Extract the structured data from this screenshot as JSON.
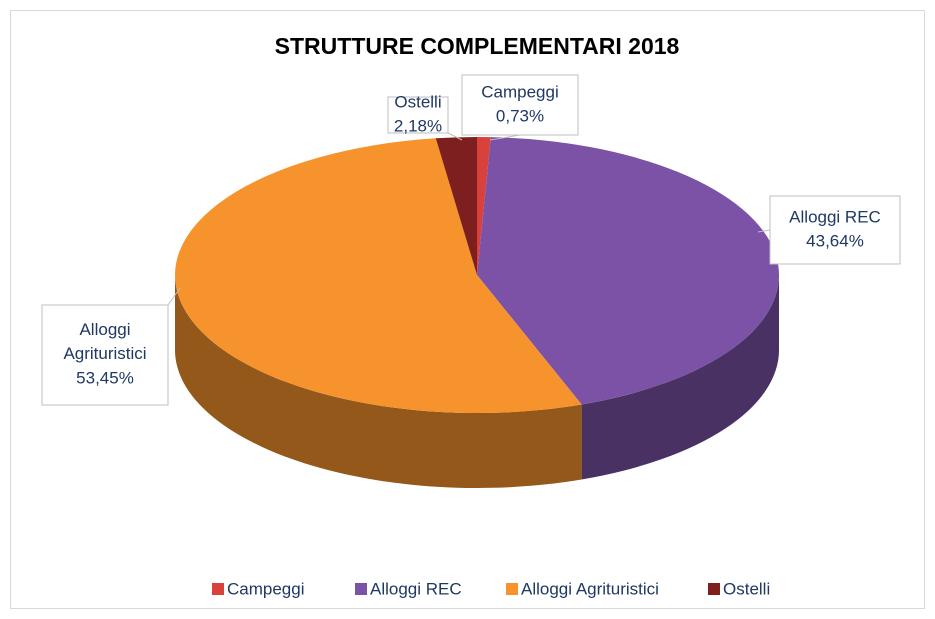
{
  "chart_data": {
    "type": "pie3d",
    "title": "STRUTTURE COMPLEMENTARI 2018",
    "categories": [
      "Campeggi",
      "Alloggi REC",
      "Alloggi Agrituristici",
      "Ostelli"
    ],
    "values": [
      0.73,
      43.64,
      53.45,
      2.18
    ],
    "value_labels": [
      "0,73%",
      "43,64%",
      "53,45%",
      "2,18%"
    ],
    "colors": [
      "#d8413c",
      "#7c52a6",
      "#f7932c",
      "#7e1f1f"
    ],
    "legend": "bottom"
  }
}
